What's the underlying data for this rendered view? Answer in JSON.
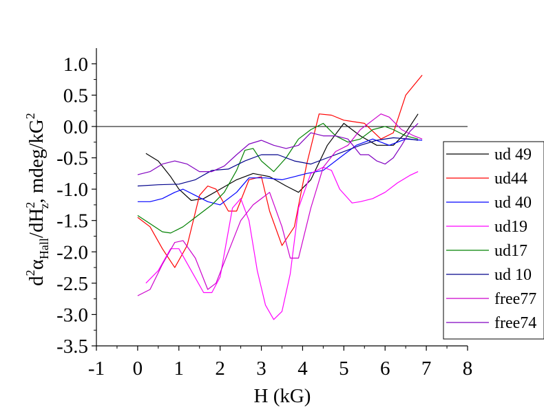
{
  "chart_data": {
    "type": "line",
    "title": "",
    "xlabel": "H (kG)",
    "ylabel_parts": {
      "prefix": "d",
      "sup1": "2",
      "alpha": "α",
      "sub_hall": "Hall",
      "middle": "/dH",
      "sup2": "2",
      "sub_z": "z",
      "units": ", mdeg/kG",
      "sup3": "2"
    },
    "xlim": [
      -1,
      8
    ],
    "ylim": [
      -3.5,
      1.25
    ],
    "xticks": [
      -1,
      0,
      1,
      2,
      3,
      4,
      5,
      6,
      7,
      8
    ],
    "xtick_labels": [
      "-1",
      "0",
      "1",
      "2",
      "3",
      "4",
      "5",
      "6",
      "7",
      "8"
    ],
    "yticks": [
      1.0,
      0.5,
      0.0,
      -0.5,
      -1.0,
      -1.5,
      -2.0,
      -2.5,
      -3.0,
      -3.5
    ],
    "ytick_labels": [
      "1.0",
      "0.5",
      "0.0",
      "-0.5",
      "-1.0",
      "-1.5",
      "-2.0",
      "-2.5",
      "-3.0",
      "-3.5"
    ],
    "reference_line_y": 0.0,
    "grid": false,
    "legend_position": "right",
    "series": [
      {
        "name": "ud 49",
        "color": "#000000",
        "x": [
          0.2,
          0.5,
          0.8,
          1.0,
          1.3,
          1.6,
          2.0,
          2.4,
          2.8,
          3.2,
          3.6,
          3.9,
          4.2,
          4.6,
          5.0,
          5.4,
          5.8,
          6.2,
          6.5,
          6.8
        ],
        "y": [
          -0.43,
          -0.55,
          -0.8,
          -1.0,
          -1.18,
          -1.15,
          -1.0,
          -0.85,
          -0.75,
          -0.8,
          -0.95,
          -1.05,
          -0.85,
          -0.3,
          0.05,
          -0.15,
          -0.3,
          -0.3,
          -0.1,
          0.2
        ]
      },
      {
        "name": "ud44",
        "color": "#ff0000",
        "x": [
          0.0,
          0.3,
          0.6,
          0.9,
          1.2,
          1.5,
          1.7,
          1.9,
          2.2,
          2.4,
          2.7,
          3.0,
          3.2,
          3.5,
          3.8,
          4.1,
          4.4,
          4.7,
          5.0,
          5.5,
          5.9,
          6.2,
          6.5,
          6.9
        ],
        "y": [
          -1.45,
          -1.6,
          -1.95,
          -2.25,
          -1.9,
          -1.1,
          -0.95,
          -1.0,
          -1.35,
          -1.35,
          -0.85,
          -0.8,
          -1.35,
          -1.9,
          -1.6,
          -0.6,
          0.2,
          0.18,
          0.1,
          0.05,
          -0.2,
          -0.1,
          0.5,
          0.82
        ]
      },
      {
        "name": "ud 40",
        "color": "#0000ff",
        "x": [
          0.0,
          0.3,
          0.6,
          0.9,
          1.1,
          1.4,
          1.7,
          2.0,
          2.4,
          2.7,
          3.1,
          3.5,
          3.8,
          4.1,
          4.5,
          4.9,
          5.3,
          5.7,
          6.1,
          6.5,
          6.9
        ],
        "y": [
          -1.2,
          -1.2,
          -1.15,
          -1.05,
          -1.0,
          -1.1,
          -1.2,
          -1.25,
          -1.05,
          -0.82,
          -0.82,
          -0.85,
          -0.8,
          -0.75,
          -0.7,
          -0.5,
          -0.3,
          -0.2,
          -0.3,
          -0.2,
          -0.22
        ]
      },
      {
        "name": "ud19",
        "color": "#ff00ff",
        "x": [
          0.2,
          0.5,
          0.8,
          1.0,
          1.3,
          1.6,
          1.8,
          2.0,
          2.3,
          2.5,
          2.7,
          2.9,
          3.1,
          3.3,
          3.5,
          3.7,
          3.9,
          4.2,
          4.5,
          4.7,
          4.9,
          5.2,
          5.4,
          5.7,
          6.0,
          6.3,
          6.6,
          6.8
        ],
        "y": [
          -2.5,
          -2.3,
          -1.95,
          -1.95,
          -2.3,
          -2.65,
          -2.65,
          -2.4,
          -1.3,
          -1.15,
          -1.5,
          -2.3,
          -2.85,
          -3.08,
          -2.95,
          -2.35,
          -1.3,
          -0.75,
          -0.65,
          -0.7,
          -1.0,
          -1.22,
          -1.2,
          -1.15,
          -1.05,
          -0.9,
          -0.78,
          -0.72
        ]
      },
      {
        "name": "ud17",
        "color": "#008000",
        "x": [
          0.0,
          0.3,
          0.6,
          0.8,
          1.1,
          1.4,
          1.8,
          2.1,
          2.4,
          2.6,
          2.8,
          3.0,
          3.3,
          3.6,
          3.9,
          4.2,
          4.5,
          4.8,
          5.1,
          5.4,
          5.7,
          6.0,
          6.2,
          6.5,
          6.8
        ],
        "y": [
          -1.42,
          -1.55,
          -1.68,
          -1.7,
          -1.6,
          -1.45,
          -1.25,
          -1.05,
          -0.7,
          -0.38,
          -0.35,
          -0.55,
          -0.72,
          -0.5,
          -0.2,
          -0.05,
          0.05,
          -0.15,
          -0.25,
          -0.2,
          -0.05,
          0.0,
          -0.05,
          -0.15,
          -0.2
        ]
      },
      {
        "name": "ud 10",
        "color": "#00008b",
        "x": [
          0.0,
          0.5,
          1.0,
          1.4,
          1.8,
          2.2,
          2.6,
          3.0,
          3.4,
          3.8,
          4.2,
          4.6,
          5.0,
          5.4,
          5.8,
          6.2,
          6.6,
          6.8
        ],
        "y": [
          -0.95,
          -0.93,
          -0.92,
          -0.85,
          -0.7,
          -0.68,
          -0.55,
          -0.45,
          -0.45,
          -0.55,
          -0.6,
          -0.5,
          -0.4,
          -0.3,
          -0.22,
          -0.18,
          -0.2,
          -0.22
        ]
      },
      {
        "name": "free77",
        "color": "#cc00cc",
        "x": [
          0.0,
          0.3,
          0.6,
          0.9,
          1.1,
          1.4,
          1.7,
          1.9,
          2.2,
          2.5,
          2.8,
          3.2,
          3.5,
          3.7,
          3.9,
          4.2,
          4.5,
          4.8,
          5.1,
          5.4,
          5.7,
          5.9,
          6.1,
          6.4,
          6.7,
          6.9
        ],
        "y": [
          -2.7,
          -2.6,
          -2.2,
          -1.85,
          -1.82,
          -2.1,
          -2.6,
          -2.5,
          -2.0,
          -1.5,
          -1.25,
          -1.05,
          -1.6,
          -2.1,
          -2.1,
          -1.3,
          -0.65,
          -0.4,
          -0.3,
          -0.05,
          0.1,
          0.2,
          0.15,
          -0.05,
          -0.15,
          -0.2
        ]
      },
      {
        "name": "free74",
        "color": "#8000c0",
        "x": [
          0.0,
          0.3,
          0.6,
          0.9,
          1.2,
          1.5,
          1.8,
          2.1,
          2.4,
          2.7,
          3.0,
          3.3,
          3.6,
          3.9,
          4.2,
          4.5,
          4.8,
          5.1,
          5.4,
          5.6,
          5.8,
          6.0,
          6.2,
          6.4,
          6.6,
          6.8
        ],
        "y": [
          -0.77,
          -0.72,
          -0.6,
          -0.55,
          -0.6,
          -0.72,
          -0.72,
          -0.63,
          -0.45,
          -0.28,
          -0.22,
          -0.3,
          -0.35,
          -0.3,
          -0.1,
          -0.15,
          -0.15,
          -0.2,
          -0.45,
          -0.45,
          -0.55,
          -0.6,
          -0.5,
          -0.3,
          -0.08,
          0.05
        ]
      }
    ]
  }
}
